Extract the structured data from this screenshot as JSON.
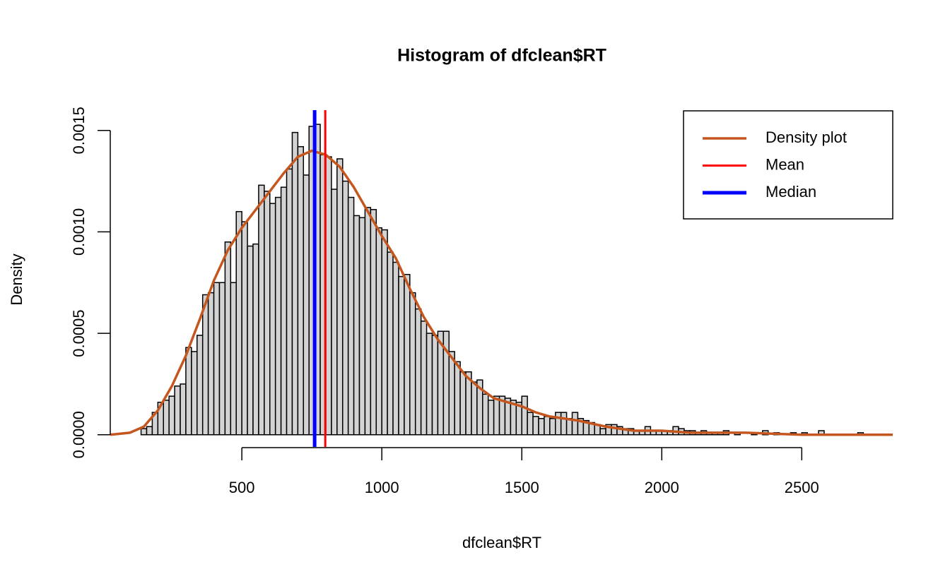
{
  "chart_data": {
    "type": "histogram",
    "title": "Histogram of dfclean$RT",
    "x_label": "dfclean$RT",
    "y_label": "Density",
    "bins": [
      140,
      160,
      180,
      200,
      220,
      240,
      260,
      280,
      300,
      320,
      340,
      360,
      380,
      400,
      420,
      440,
      460,
      480,
      500,
      520,
      540,
      560,
      580,
      600,
      620,
      640,
      660,
      680,
      700,
      720,
      740,
      760,
      780,
      800,
      820,
      840,
      860,
      880,
      900,
      920,
      940,
      960,
      980,
      1000,
      1020,
      1040,
      1060,
      1080,
      1100,
      1120,
      1140,
      1160,
      1180,
      1200,
      1220,
      1240,
      1260,
      1280,
      1300,
      1320,
      1340,
      1360,
      1380,
      1400,
      1420,
      1440,
      1460,
      1480,
      1500,
      1520,
      1540,
      1560,
      1580,
      1600,
      1620,
      1640,
      1660,
      1680,
      1700,
      1720,
      1740,
      1760,
      1780,
      1800,
      1820,
      1840,
      1860,
      1880,
      1900,
      1920,
      1940,
      1960,
      1980,
      2000,
      2020,
      2040,
      2060,
      2080,
      2100,
      2120,
      2140,
      2160,
      2180,
      2200,
      2220,
      2240,
      2260,
      2280,
      2300,
      2320,
      2340,
      2360,
      2380,
      2400,
      2420,
      2440,
      2460,
      2480,
      2500,
      2520,
      2540,
      2560,
      2580,
      2600,
      2620,
      2640,
      2660,
      2680,
      2700,
      2720,
      2740
    ],
    "values": [
      3e-05,
      4e-05,
      0.00011,
      0.00016,
      0.00017,
      0.00019,
      0.00024,
      0.00025,
      0.00043,
      0.00041,
      0.00049,
      0.00069,
      0.0007,
      0.00075,
      0.00075,
      0.00095,
      0.00075,
      0.0011,
      0.00105,
      0.00093,
      0.00094,
      0.00123,
      0.0012,
      0.00114,
      0.00117,
      0.00122,
      0.00131,
      0.00149,
      0.00142,
      0.00128,
      0.00152,
      0.00153,
      0.00138,
      0.00137,
      0.00121,
      0.00136,
      0.00125,
      0.00117,
      0.00108,
      0.00107,
      0.00112,
      0.00111,
      0.00102,
      0.00101,
      0.0009,
      0.00085,
      0.00078,
      0.00079,
      0.0007,
      0.00062,
      0.00056,
      0.0005,
      0.00049,
      0.00051,
      0.00051,
      0.00041,
      0.00036,
      0.00031,
      0.00031,
      0.00026,
      0.00027,
      0.0002,
      0.00017,
      0.00019,
      0.00019,
      0.00018,
      0.00017,
      0.00016,
      0.00019,
      0.00011,
      9e-05,
      8e-05,
      9e-05,
      8e-05,
      0.00011,
      0.00011,
      8e-05,
      0.00011,
      8e-05,
      7e-05,
      6e-05,
      5e-05,
      3e-05,
      5e-05,
      5e-05,
      4e-05,
      3e-05,
      3e-05,
      2e-05,
      2e-05,
      4e-05,
      2e-05,
      2e-05,
      2e-05,
      2e-05,
      4e-05,
      3e-05,
      2e-05,
      2e-05,
      1e-05,
      2e-05,
      1e-05,
      1e-05,
      1e-05,
      2e-05,
      0,
      1e-05,
      0,
      0,
      1e-05,
      0,
      2e-05,
      0,
      1e-05,
      0,
      0,
      1e-05,
      0,
      1e-05,
      0,
      0,
      2e-05,
      0,
      0,
      0,
      0,
      0,
      0,
      1e-05,
      0
    ],
    "color": "#d3d3d3",
    "density": {
      "name": "Density plot",
      "color": "#c4561e",
      "x": [
        30,
        100,
        150,
        200,
        250,
        300,
        350,
        400,
        450,
        500,
        550,
        600,
        650,
        700,
        750,
        800,
        850,
        900,
        950,
        1000,
        1050,
        1100,
        1150,
        1200,
        1250,
        1300,
        1350,
        1400,
        1450,
        1500,
        1550,
        1600,
        1650,
        1700,
        1800,
        1900,
        2000,
        2100,
        2200,
        2300,
        2500,
        2700,
        2825
      ],
      "y": [
        0,
        1e-05,
        4e-05,
        0.00012,
        0.00024,
        0.00039,
        0.00057,
        0.00076,
        0.00091,
        0.00102,
        0.00111,
        0.0012,
        0.00129,
        0.00137,
        0.0014,
        0.00138,
        0.00132,
        0.00122,
        0.0011,
        0.00098,
        0.00087,
        0.00072,
        0.00058,
        0.00047,
        0.00038,
        0.00029,
        0.00023,
        0.00018,
        0.00016,
        0.00014,
        0.00011,
        9e-05,
        8e-05,
        7e-05,
        4e-05,
        2e-05,
        2e-05,
        1e-05,
        1e-05,
        1e-05,
        0,
        0,
        0
      ]
    },
    "mean": {
      "name": "Mean",
      "color": "#ff0000",
      "value": 798
    },
    "median": {
      "name": "Median",
      "color": "#0000ff",
      "value": 760
    },
    "xlim": [
      30,
      2825
    ],
    "ylim": [
      -6e-05,
      0.0016
    ],
    "xticks": [
      500,
      1000,
      1500,
      2000,
      2500
    ],
    "yticks": [
      {
        "value": 0,
        "label": "0.0000"
      },
      {
        "value": 0.0005,
        "label": "0.0005"
      },
      {
        "value": 0.001,
        "label": "0.0010"
      },
      {
        "value": 0.0015,
        "label": "0.0015"
      }
    ],
    "legend": "topright"
  }
}
